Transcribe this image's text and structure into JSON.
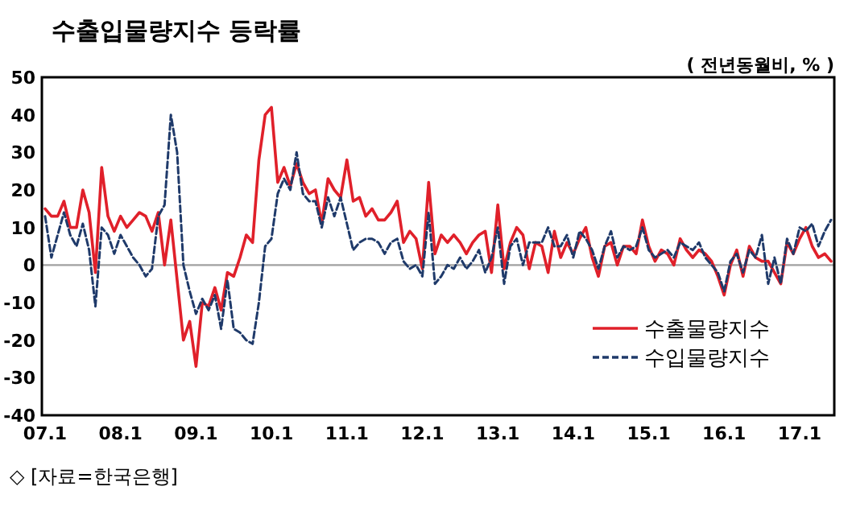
{
  "chart_data": {
    "type": "line",
    "title": "수출입물량지수  등락률",
    "ylabel": "( 전년동월비, % )",
    "annotations": [
      "◇ [자료=한국은행]"
    ],
    "categories": [
      "07.1",
      null,
      null,
      null,
      null,
      null,
      null,
      null,
      null,
      null,
      null,
      null,
      "08.1",
      null,
      null,
      null,
      null,
      null,
      null,
      null,
      null,
      null,
      null,
      null,
      "09.1",
      null,
      null,
      null,
      null,
      null,
      null,
      null,
      null,
      null,
      null,
      null,
      "10.1",
      null,
      null,
      null,
      null,
      null,
      null,
      null,
      null,
      null,
      null,
      null,
      "11.1",
      null,
      null,
      null,
      null,
      null,
      null,
      null,
      null,
      null,
      null,
      null,
      "12.1",
      null,
      null,
      null,
      null,
      null,
      null,
      null,
      null,
      null,
      null,
      null,
      "13.1",
      null,
      null,
      null,
      null,
      null,
      null,
      null,
      null,
      null,
      null,
      null,
      "14.1",
      null,
      null,
      null,
      null,
      null,
      null,
      null,
      null,
      null,
      null,
      null,
      "15.1",
      null,
      null,
      null,
      null,
      null,
      null,
      null,
      null,
      null,
      null,
      null,
      "16.1",
      null,
      null,
      null,
      null,
      null,
      null,
      null,
      null,
      null,
      null,
      null,
      "17.1",
      null,
      null,
      null,
      null,
      null
    ],
    "series": [
      {
        "name": "수출물량지수",
        "color": "#e0202a",
        "line_style": "solid",
        "values": [
          15,
          13,
          13,
          17,
          10,
          10,
          20,
          14,
          -2,
          26,
          13,
          9,
          13,
          10,
          12,
          14,
          13,
          9,
          14,
          0,
          12,
          -4,
          -20,
          -15,
          -27,
          -10,
          -11,
          -6,
          -12,
          -2,
          -3,
          2,
          8,
          6,
          28,
          40,
          42,
          22,
          26,
          21,
          27,
          22,
          19,
          20,
          11,
          23,
          20,
          18,
          28,
          17,
          18,
          13,
          15,
          12,
          12,
          14,
          17,
          6,
          9,
          7,
          -1,
          22,
          3,
          8,
          6,
          8,
          6,
          3,
          6,
          8,
          9,
          -2,
          16,
          -1,
          6,
          10,
          8,
          -1,
          6,
          5,
          -2,
          9,
          2,
          6,
          3,
          7,
          10,
          2,
          -3,
          5,
          6,
          0,
          5,
          5,
          3,
          12,
          5,
          1,
          4,
          3,
          0,
          7,
          4,
          2,
          4,
          3,
          1,
          -3,
          -8,
          0,
          4,
          -3,
          5,
          2,
          1,
          1,
          -2,
          -5,
          6,
          3,
          7,
          10,
          5,
          2,
          3,
          1
        ]
      },
      {
        "name": "수입물량지수",
        "color": "#1f3a6a",
        "line_style": "dashed",
        "values": [
          13,
          2,
          8,
          14,
          8,
          5,
          11,
          4,
          -11,
          10,
          8,
          3,
          8,
          5,
          2,
          0,
          -3,
          -1,
          13,
          16,
          40,
          30,
          0,
          -7,
          -13,
          -9,
          -12,
          -8,
          -17,
          -4,
          -17,
          -18,
          -20,
          -21,
          -10,
          5,
          7,
          19,
          23,
          20,
          30,
          19,
          17,
          17,
          10,
          18,
          13,
          18,
          11,
          4,
          6,
          7,
          7,
          6,
          3,
          6,
          7,
          1,
          -1,
          0,
          -3,
          14,
          -5,
          -3,
          0,
          -1,
          2,
          -1,
          1,
          4,
          -2,
          2,
          10,
          -5,
          5,
          7,
          0,
          6,
          6,
          6,
          10,
          5,
          5,
          8,
          2,
          9,
          7,
          4,
          -1,
          5,
          9,
          2,
          5,
          4,
          5,
          10,
          4,
          2,
          3,
          4,
          2,
          6,
          5,
          4,
          6,
          2,
          0,
          -2,
          -7,
          1,
          3,
          -2,
          4,
          2,
          8,
          -5,
          2,
          -5,
          7,
          3,
          10,
          9,
          11,
          5,
          9,
          12
        ]
      }
    ],
    "ylim": [
      -40,
      50
    ],
    "yticks": [
      -40,
      -30,
      -20,
      -10,
      0,
      10,
      20,
      30,
      40,
      50
    ],
    "ref_lines": [
      {
        "axis": "y",
        "value": 0,
        "color": "#a0a0a0"
      }
    ],
    "legend": "bottom right"
  }
}
